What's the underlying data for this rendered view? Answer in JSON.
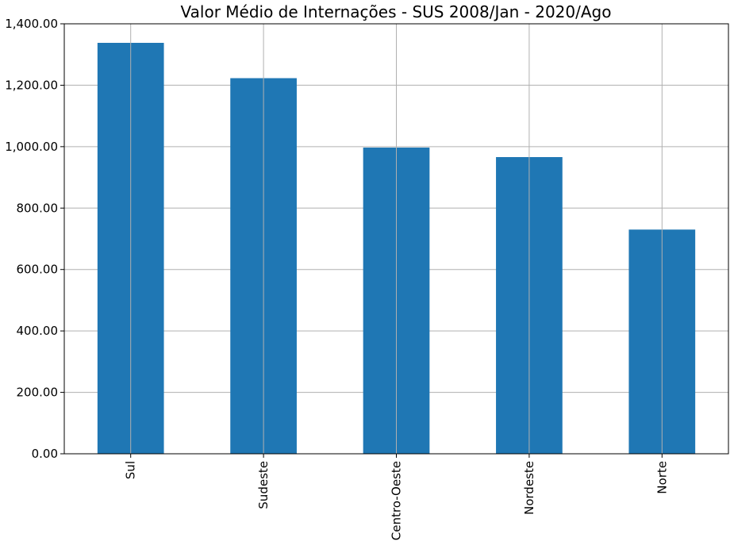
{
  "chart_data": {
    "type": "bar",
    "title": "Valor Médio de Internações - SUS 2008/Jan - 2020/Ago",
    "xlabel": "",
    "ylabel": "",
    "categories": [
      "Sul",
      "Sudeste",
      "Centro-Oeste",
      "Nordeste",
      "Norte"
    ],
    "values": [
      1338,
      1223,
      997,
      966,
      730
    ],
    "ylim": [
      0,
      1400
    ],
    "yticks": [
      0,
      200,
      400,
      600,
      800,
      1000,
      1200,
      1400
    ],
    "ytick_labels": [
      "0.00",
      "200.00",
      "400.00",
      "600.00",
      "800.00",
      "1,000.00",
      "1,200.00",
      "1,400.00"
    ],
    "grid": true,
    "bar_color": "#1f77b4",
    "grid_color": "#b0b0b0"
  }
}
